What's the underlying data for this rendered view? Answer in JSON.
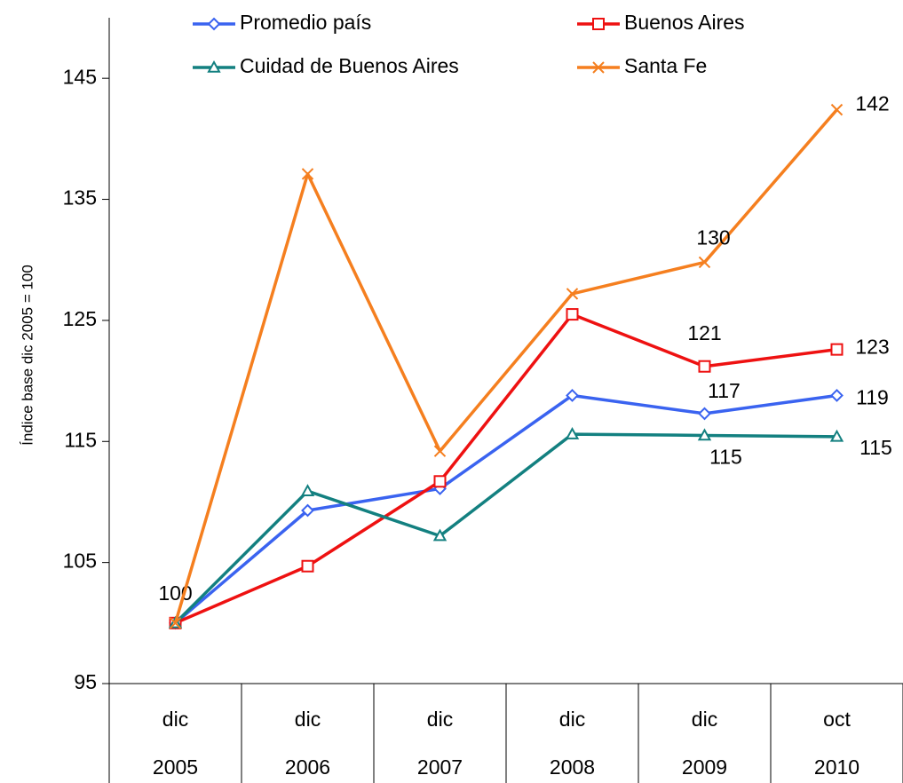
{
  "chart_data": {
    "type": "line",
    "y_label": "Índice base dic 2005 = 100",
    "categories": [
      [
        "dic",
        "2005"
      ],
      [
        "dic",
        "2006"
      ],
      [
        "dic",
        "2007"
      ],
      [
        "dic",
        "2008"
      ],
      [
        "dic",
        "2009"
      ],
      [
        "oct",
        "2010"
      ]
    ],
    "ylim": [
      95,
      150
    ],
    "yticks": [
      95,
      105,
      115,
      125,
      135,
      145
    ],
    "series": [
      {
        "name": "Promedio país",
        "color": "#3a63f0",
        "marker": "diamond",
        "values": [
          100,
          109.3,
          111.1,
          118.8,
          117.3,
          118.8
        ],
        "value_labels": [
          "100",
          null,
          null,
          null,
          "117",
          "119"
        ]
      },
      {
        "name": "Buenos Aires",
        "color": "#ee1111",
        "marker": "square",
        "values": [
          100,
          104.7,
          111.7,
          125.5,
          121.2,
          122.6
        ],
        "value_labels": [
          null,
          null,
          null,
          null,
          "121",
          "123"
        ]
      },
      {
        "name": "Cuidad de Buenos Aires",
        "color": "#138080",
        "marker": "triangle",
        "values": [
          100,
          110.9,
          107.2,
          115.6,
          115.5,
          115.4
        ],
        "value_labels": [
          null,
          null,
          null,
          null,
          "115",
          "115"
        ]
      },
      {
        "name": "Santa Fe",
        "color": "#f57f1f",
        "marker": "x",
        "values": [
          100,
          137.1,
          114.2,
          127.2,
          129.8,
          142.4
        ],
        "value_labels": [
          null,
          null,
          null,
          null,
          "130",
          "142"
        ]
      }
    ]
  }
}
